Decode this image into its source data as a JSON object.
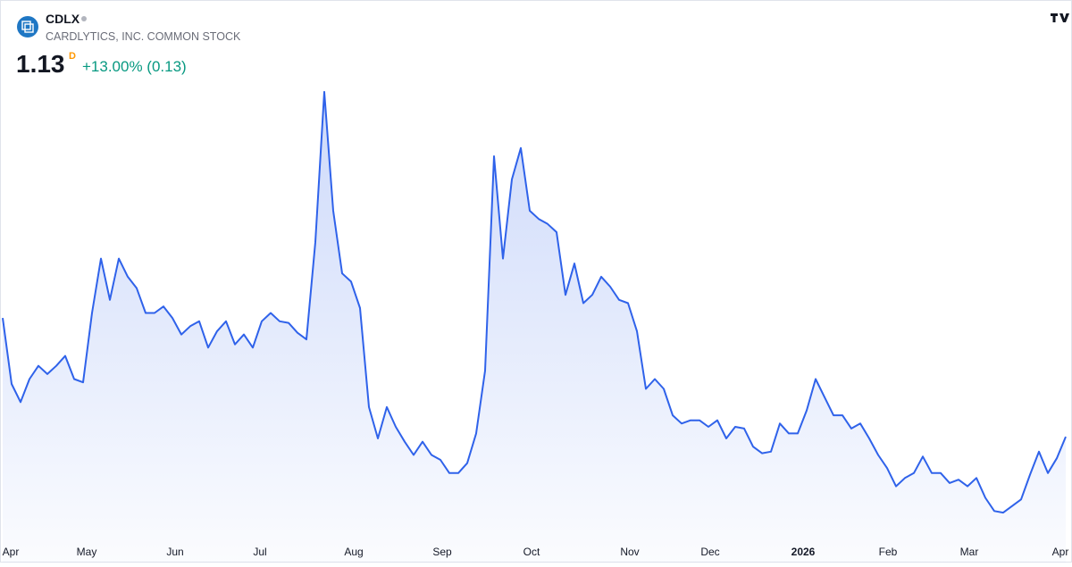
{
  "header": {
    "symbol": "CDLX",
    "name": "CARDLYTICS, INC. COMMON STOCK",
    "price": "1.13",
    "interval": "D",
    "change": "+13.00% (0.13)"
  },
  "chart_data": {
    "type": "area",
    "color": "#2f62ea",
    "values": [
      1.85,
      1.45,
      1.34,
      1.48,
      1.56,
      1.51,
      1.56,
      1.62,
      1.48,
      1.46,
      1.88,
      2.21,
      1.96,
      2.21,
      2.1,
      2.03,
      1.88,
      1.88,
      1.92,
      1.85,
      1.75,
      1.8,
      1.83,
      1.67,
      1.77,
      1.83,
      1.69,
      1.75,
      1.67,
      1.83,
      1.88,
      1.83,
      1.82,
      1.76,
      1.72,
      2.31,
      3.22,
      2.5,
      2.12,
      2.07,
      1.91,
      1.31,
      1.12,
      1.31,
      1.19,
      1.1,
      1.02,
      1.1,
      1.02,
      0.99,
      0.91,
      0.91,
      0.97,
      1.15,
      1.53,
      2.83,
      2.21,
      2.69,
      2.88,
      2.5,
      2.45,
      2.42,
      2.37,
      1.99,
      2.18,
      1.94,
      1.99,
      2.1,
      2.04,
      1.96,
      1.94,
      1.77,
      1.42,
      1.48,
      1.42,
      1.26,
      1.21,
      1.23,
      1.23,
      1.19,
      1.23,
      1.12,
      1.19,
      1.18,
      1.07,
      1.03,
      1.04,
      1.21,
      1.15,
      1.15,
      1.29,
      1.48,
      1.37,
      1.26,
      1.26,
      1.18,
      1.21,
      1.12,
      1.02,
      0.94,
      0.83,
      0.88,
      0.91,
      1.01,
      0.91,
      0.91,
      0.85,
      0.87,
      0.83,
      0.88,
      0.76,
      0.68,
      0.67,
      0.71,
      0.75,
      0.9,
      1.04,
      0.91,
      1.0,
      1.13
    ],
    "xlim": [
      0,
      119
    ],
    "ylim": [
      0.53,
      3.29
    ],
    "xticks": [
      {
        "value": 0.8,
        "label": "Apr"
      },
      {
        "value": 9.4,
        "label": "May"
      },
      {
        "value": 19.3,
        "label": "Jun"
      },
      {
        "value": 28.8,
        "label": "Jul"
      },
      {
        "value": 39.3,
        "label": "Aug"
      },
      {
        "value": 49.2,
        "label": "Sep"
      },
      {
        "value": 59.2,
        "label": "Oct"
      },
      {
        "value": 70.2,
        "label": "Nov"
      },
      {
        "value": 79.2,
        "label": "Dec"
      },
      {
        "value": 89.6,
        "label": "2026"
      },
      {
        "value": 99.1,
        "label": "Feb"
      },
      {
        "value": 108.2,
        "label": "Mar"
      },
      {
        "value": 118.4,
        "label": "Apr"
      }
    ]
  }
}
